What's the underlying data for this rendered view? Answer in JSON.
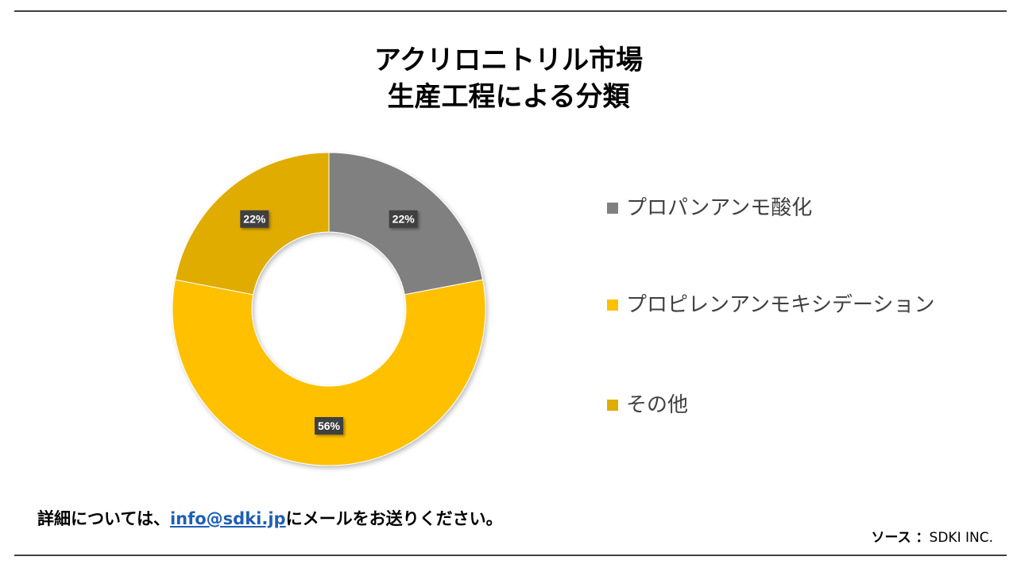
{
  "chart_data": {
    "type": "pie",
    "title_line1": "アクリロニトリル市場",
    "title_line2": "生産工程による分類",
    "categories": [
      "プロパンアンモ酸化",
      "プロピレンアンモキシデーション",
      "その他"
    ],
    "values": [
      22,
      56,
      22
    ],
    "data_labels": [
      "22%",
      "56%",
      "22%"
    ],
    "colors": [
      "#808080",
      "#FFC000",
      "#E0AC00"
    ],
    "donut": true,
    "legend_position": "right"
  },
  "footer": {
    "note_prefix": "詳細については、",
    "email": "info@sdki.jp",
    "note_suffix": "にメールをお送りください。"
  },
  "source": {
    "label": "ソース ：",
    "value": "SDKI INC."
  }
}
